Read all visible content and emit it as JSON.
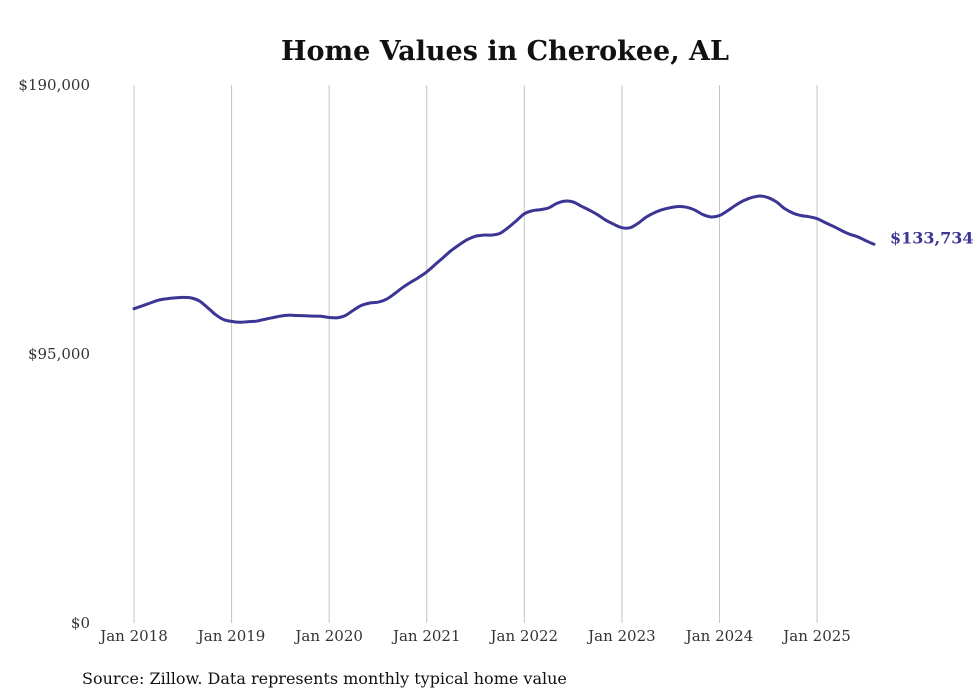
{
  "chart_data": {
    "type": "line",
    "title": "Home Values in Cherokee, AL",
    "source": "Source: Zillow. Data represents monthly typical home value",
    "ylim": [
      0,
      190000
    ],
    "y_ticks": [
      {
        "value": 0,
        "label": "$0"
      },
      {
        "value": 95000,
        "label": "$95,000"
      },
      {
        "value": 190000,
        "label": "$190,000"
      }
    ],
    "x_ticks": [
      {
        "value": "2018-01",
        "label": "Jan 2018"
      },
      {
        "value": "2019-01",
        "label": "Jan 2019"
      },
      {
        "value": "2020-01",
        "label": "Jan 2020"
      },
      {
        "value": "2021-01",
        "label": "Jan 2021"
      },
      {
        "value": "2022-01",
        "label": "Jan 2022"
      },
      {
        "value": "2023-01",
        "label": "Jan 2023"
      },
      {
        "value": "2024-01",
        "label": "Jan 2024"
      },
      {
        "value": "2025-01",
        "label": "Jan 2025"
      }
    ],
    "xlim": [
      "2018-01",
      "2025-08"
    ],
    "grid": {
      "vertical": true,
      "horizontal": false
    },
    "line_color": "#3b3594",
    "end_label": "$133,734",
    "series": [
      {
        "x": [
          "2018-01",
          "2018-02",
          "2018-03",
          "2018-04",
          "2018-05",
          "2018-06",
          "2018-07",
          "2018-08",
          "2018-09",
          "2018-10",
          "2018-11",
          "2018-12",
          "2019-01",
          "2019-02",
          "2019-03",
          "2019-04",
          "2019-05",
          "2019-06",
          "2019-07",
          "2019-08",
          "2019-09",
          "2019-10",
          "2019-11",
          "2019-12",
          "2020-01",
          "2020-02",
          "2020-03",
          "2020-04",
          "2020-05",
          "2020-06",
          "2020-07",
          "2020-08",
          "2020-09",
          "2020-10",
          "2020-11",
          "2020-12",
          "2021-01",
          "2021-02",
          "2021-03",
          "2021-04",
          "2021-05",
          "2021-06",
          "2021-07",
          "2021-08",
          "2021-09",
          "2021-10",
          "2021-11",
          "2021-12",
          "2022-01",
          "2022-02",
          "2022-03",
          "2022-04",
          "2022-05",
          "2022-06",
          "2022-07",
          "2022-08",
          "2022-09",
          "2022-10",
          "2022-11",
          "2022-12",
          "2023-01",
          "2023-02",
          "2023-03",
          "2023-04",
          "2023-05",
          "2023-06",
          "2023-07",
          "2023-08",
          "2023-09",
          "2023-10",
          "2023-11",
          "2023-12",
          "2024-01",
          "2024-02",
          "2024-03",
          "2024-04",
          "2024-05",
          "2024-06",
          "2024-07",
          "2024-08",
          "2024-09",
          "2024-10",
          "2024-11",
          "2024-12",
          "2025-01",
          "2025-02",
          "2025-03",
          "2025-04",
          "2025-05",
          "2025-06",
          "2025-07",
          "2025-08"
        ],
        "values": [
          111000,
          112000,
          113000,
          114000,
          114500,
          114800,
          115000,
          114800,
          113800,
          111500,
          109000,
          107200,
          106500,
          106200,
          106400,
          106600,
          107200,
          107800,
          108400,
          108700,
          108600,
          108500,
          108400,
          108300,
          107900,
          107800,
          108600,
          110500,
          112200,
          113000,
          113300,
          114300,
          116200,
          118400,
          120300,
          122000,
          124000,
          126500,
          129000,
          131500,
          133600,
          135400,
          136600,
          137000,
          137000,
          137600,
          139600,
          142000,
          144500,
          145600,
          146000,
          146600,
          148200,
          149000,
          148700,
          147200,
          145800,
          144200,
          142300,
          140800,
          139600,
          139600,
          141200,
          143400,
          144900,
          146000,
          146700,
          147100,
          146800,
          145800,
          144200,
          143400,
          143900,
          145600,
          147600,
          149200,
          150300,
          150800,
          150200,
          148700,
          146400,
          144800,
          143900,
          143500,
          142800,
          141400,
          140100,
          138600,
          137300,
          136400,
          135000,
          133734
        ]
      }
    ]
  }
}
